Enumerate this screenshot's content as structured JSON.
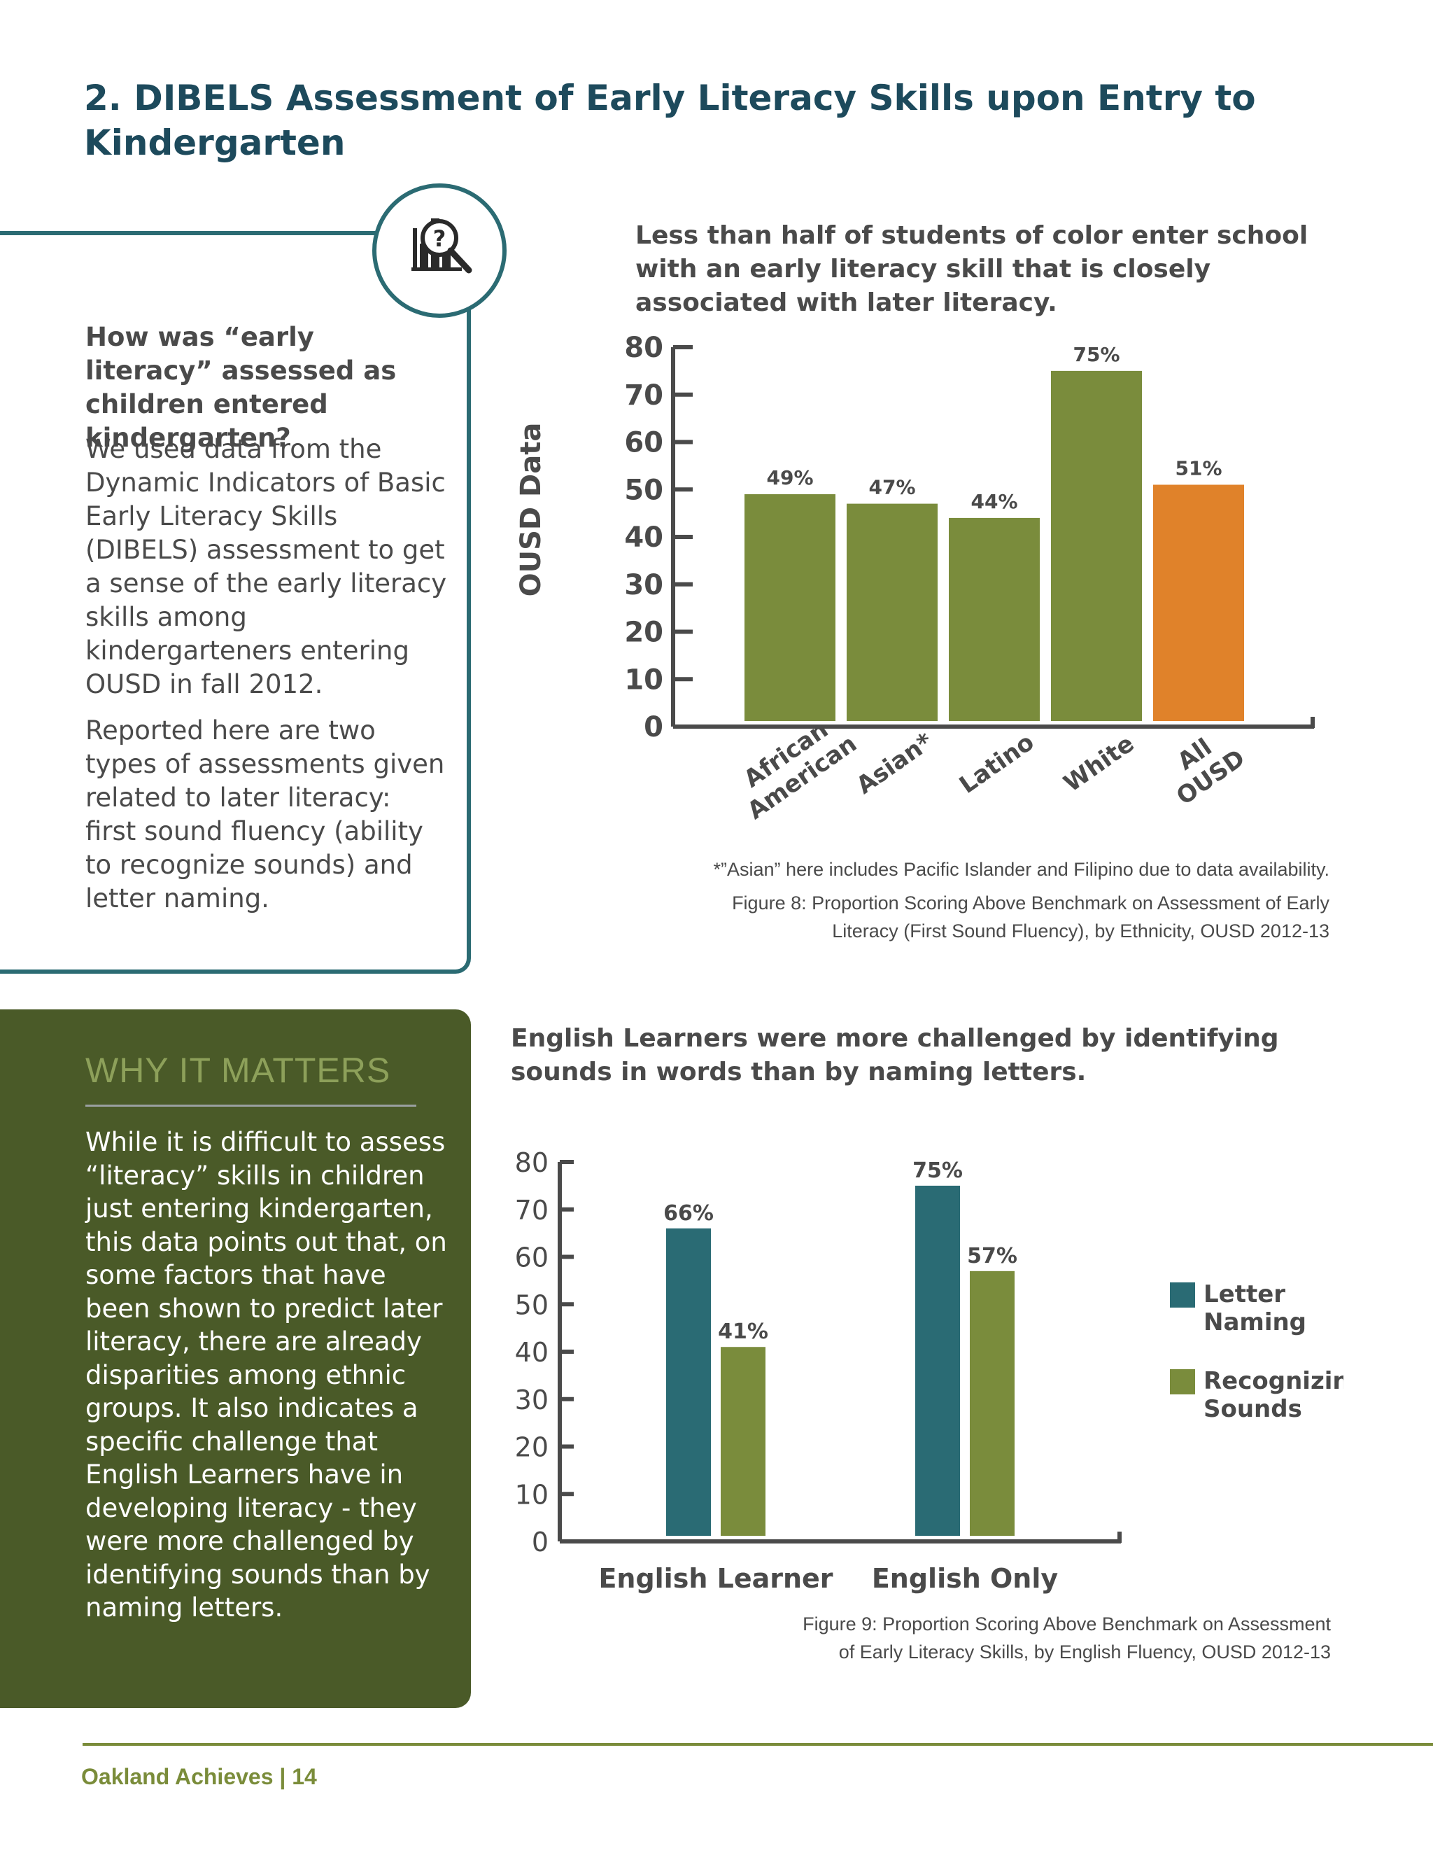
{
  "page": {
    "title": "2. DIBELS Assessment of Early Literacy Skills upon Entry to Kindergarten",
    "footer": "Oakland Achieves | 14"
  },
  "sidebar": {
    "icon": "chart-magnifier-icon",
    "question": "How was “early literacy” assessed as children entered kindergarten?",
    "paragraph1": "We used data from the Dynamic Indicators of Basic Early Literacy Skills (DIBELS) assessment to get a sense of the early literacy skills among kindergarteners entering OUSD in fall 2012.",
    "paragraph2": "Reported here are two types of assessments given related to later literacy: first sound fluency (ability to recognize sounds) and letter naming."
  },
  "why": {
    "title": "WHY IT MATTERS",
    "text": "While it is difficult to assess “literacy” skills in children just entering kindergarten, this data points out that, on some factors that have been shown to predict later literacy, there are already disparities among ethnic groups. It also indicates a specific challenge that English Learners have in developing literacy - they were more challenged by identifying sounds than by naming letters."
  },
  "figure8": {
    "headline": "Less than half of students of color enter school with an early literacy skill that is closely associated with later literacy.",
    "footnote": "*”Asian” here includes Pacific Islander and Filipino due to data availability.",
    "caption_line1": "Figure 8: Proportion Scoring Above Benchmark on Assessment of Early",
    "caption_line2": "Literacy (First Sound Fluency), by Ethnicity, OUSD 2012-13"
  },
  "figure9": {
    "headline": "English Learners were more challenged by identifying sounds in words than by naming letters.",
    "caption_line1": "Figure 9: Proportion Scoring Above Benchmark on Assessment",
    "caption_line2": "of Early Literacy Skills, by English Fluency, OUSD 2012-13"
  },
  "colors": {
    "green": "#7a8c3c",
    "orange": "#e0822a",
    "teal": "#2a6b74",
    "dark_green": "#4a5a28"
  },
  "chart_data": [
    {
      "type": "bar",
      "ylabel": "OUSD Data",
      "xlabel": "",
      "categories": [
        "African American",
        "Asian*",
        "Latino",
        "White",
        "All OUSD"
      ],
      "values": [
        49,
        47,
        44,
        75,
        51
      ],
      "data_labels": [
        "49%",
        "47%",
        "44%",
        "75%",
        "51%"
      ],
      "bar_colors": [
        "#7a8c3c",
        "#7a8c3c",
        "#7a8c3c",
        "#7a8c3c",
        "#e0822a"
      ],
      "ylim": [
        0,
        80
      ],
      "yticks": [
        0,
        10,
        20,
        30,
        40,
        50,
        60,
        70,
        80
      ],
      "grid": false
    },
    {
      "type": "bar",
      "xlabel": "",
      "ylabel": "",
      "categories": [
        "English Learner",
        "English Only"
      ],
      "series": [
        {
          "name": "Letter Naming",
          "color": "#2a6b74",
          "values": [
            66,
            75
          ],
          "data_labels": [
            "66%",
            "75%"
          ]
        },
        {
          "name": "Recognizing Sounds",
          "color": "#7a8c3c",
          "values": [
            41,
            57
          ],
          "data_labels": [
            "41%",
            "57%"
          ]
        }
      ],
      "ylim": [
        0,
        80
      ],
      "yticks": [
        0,
        10,
        20,
        30,
        40,
        50,
        60,
        70,
        80
      ],
      "legend": "right",
      "grid": false
    }
  ]
}
